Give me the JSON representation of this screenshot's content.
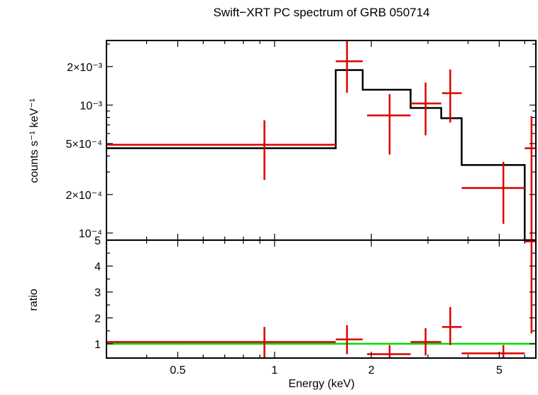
{
  "chart_data": {
    "title": "Swift−XRT PC spectrum of GRB 050714",
    "xlabel": "Energy (keV)",
    "x_scale": "log",
    "xlim": [
      0.3,
      6.5
    ],
    "x_ticks": [
      {
        "value": 0.5,
        "label": "0.5"
      },
      {
        "value": 1,
        "label": "1"
      },
      {
        "value": 2,
        "label": "2"
      },
      {
        "value": 5,
        "label": "5"
      }
    ],
    "top_panel": {
      "type": "scatter",
      "ylabel": "counts s⁻¹ keV⁻¹",
      "y_scale": "log",
      "ylim": [
        8.8e-05,
        0.0032
      ],
      "y_ticks": [
        {
          "value": 0.0001,
          "label": "10⁻⁴"
        },
        {
          "value": 0.0002,
          "label": "2×10⁻⁴"
        },
        {
          "value": 0.0005,
          "label": "5×10⁻⁴"
        },
        {
          "value": 0.001,
          "label": "10⁻³"
        },
        {
          "value": 0.002,
          "label": "2×10⁻³"
        }
      ],
      "data_points": [
        {
          "x": 0.93,
          "xlo": 0.3,
          "xhi": 1.55,
          "y": 0.00049,
          "ylo": 0.00026,
          "yhi": 0.00076
        },
        {
          "x": 1.68,
          "xlo": 1.55,
          "xhi": 1.88,
          "y": 0.0022,
          "ylo": 0.00125,
          "yhi": 0.0032
        },
        {
          "x": 2.28,
          "xlo": 1.94,
          "xhi": 2.65,
          "y": 0.00083,
          "ylo": 0.00041,
          "yhi": 0.00122
        },
        {
          "x": 2.95,
          "xlo": 2.65,
          "xhi": 3.3,
          "y": 0.00103,
          "ylo": 0.00058,
          "yhi": 0.0015
        },
        {
          "x": 3.52,
          "xlo": 3.32,
          "xhi": 3.82,
          "y": 0.00124,
          "ylo": 0.00073,
          "yhi": 0.0019
        },
        {
          "x": 5.15,
          "xlo": 3.82,
          "xhi": 6.0,
          "y": 0.000225,
          "ylo": 0.000118,
          "yhi": 0.00036
        },
        {
          "x": 6.3,
          "xlo": 6.0,
          "xhi": 6.5,
          "y": 0.00046,
          "ylo": 8.8e-05,
          "yhi": 0.00082
        }
      ],
      "model_steps": [
        {
          "xlo": 0.3,
          "xhi": 1.55,
          "y": 0.00046
        },
        {
          "xlo": 1.55,
          "xhi": 1.88,
          "y": 0.00188
        },
        {
          "xlo": 1.88,
          "xhi": 2.65,
          "y": 0.00132
        },
        {
          "xlo": 2.65,
          "xhi": 3.3,
          "y": 0.00095
        },
        {
          "xlo": 3.3,
          "xhi": 3.82,
          "y": 0.00079
        },
        {
          "xlo": 3.82,
          "xhi": 6.0,
          "y": 0.00034
        },
        {
          "xlo": 6.0,
          "xhi": 6.5,
          "y": 8.8e-05
        }
      ]
    },
    "bottom_panel": {
      "type": "scatter",
      "ylabel": "ratio",
      "y_scale": "linear",
      "ylim": [
        0.45,
        5.0
      ],
      "y_ticks": [
        {
          "value": 1,
          "label": "1"
        },
        {
          "value": 2,
          "label": "2"
        },
        {
          "value": 3,
          "label": "3"
        },
        {
          "value": 4,
          "label": "4"
        },
        {
          "value": 5,
          "label": "5"
        }
      ],
      "reference_line": 1,
      "data_points": [
        {
          "x": 0.93,
          "xlo": 0.3,
          "xhi": 1.55,
          "y": 1.07,
          "ylo": 0.45,
          "yhi": 1.65
        },
        {
          "x": 1.68,
          "xlo": 1.55,
          "xhi": 1.88,
          "y": 1.17,
          "ylo": 0.6,
          "yhi": 1.72
        },
        {
          "x": 2.28,
          "xlo": 1.94,
          "xhi": 2.65,
          "y": 0.6,
          "ylo": 0.45,
          "yhi": 0.95
        },
        {
          "x": 2.95,
          "xlo": 2.65,
          "xhi": 3.3,
          "y": 1.07,
          "ylo": 0.55,
          "yhi": 1.6
        },
        {
          "x": 3.52,
          "xlo": 3.32,
          "xhi": 3.82,
          "y": 1.65,
          "ylo": 0.95,
          "yhi": 2.42
        },
        {
          "x": 5.15,
          "xlo": 3.82,
          "xhi": 6.0,
          "y": 0.63,
          "ylo": 0.45,
          "yhi": 0.95
        },
        {
          "x": 6.3,
          "xlo": 6.0,
          "xhi": 6.5,
          "y": 4.95,
          "ylo": 1.4,
          "yhi": 5.0
        }
      ]
    },
    "colors": {
      "data": "#dd0000",
      "model": "#000000",
      "reference": "#00dd00"
    }
  }
}
